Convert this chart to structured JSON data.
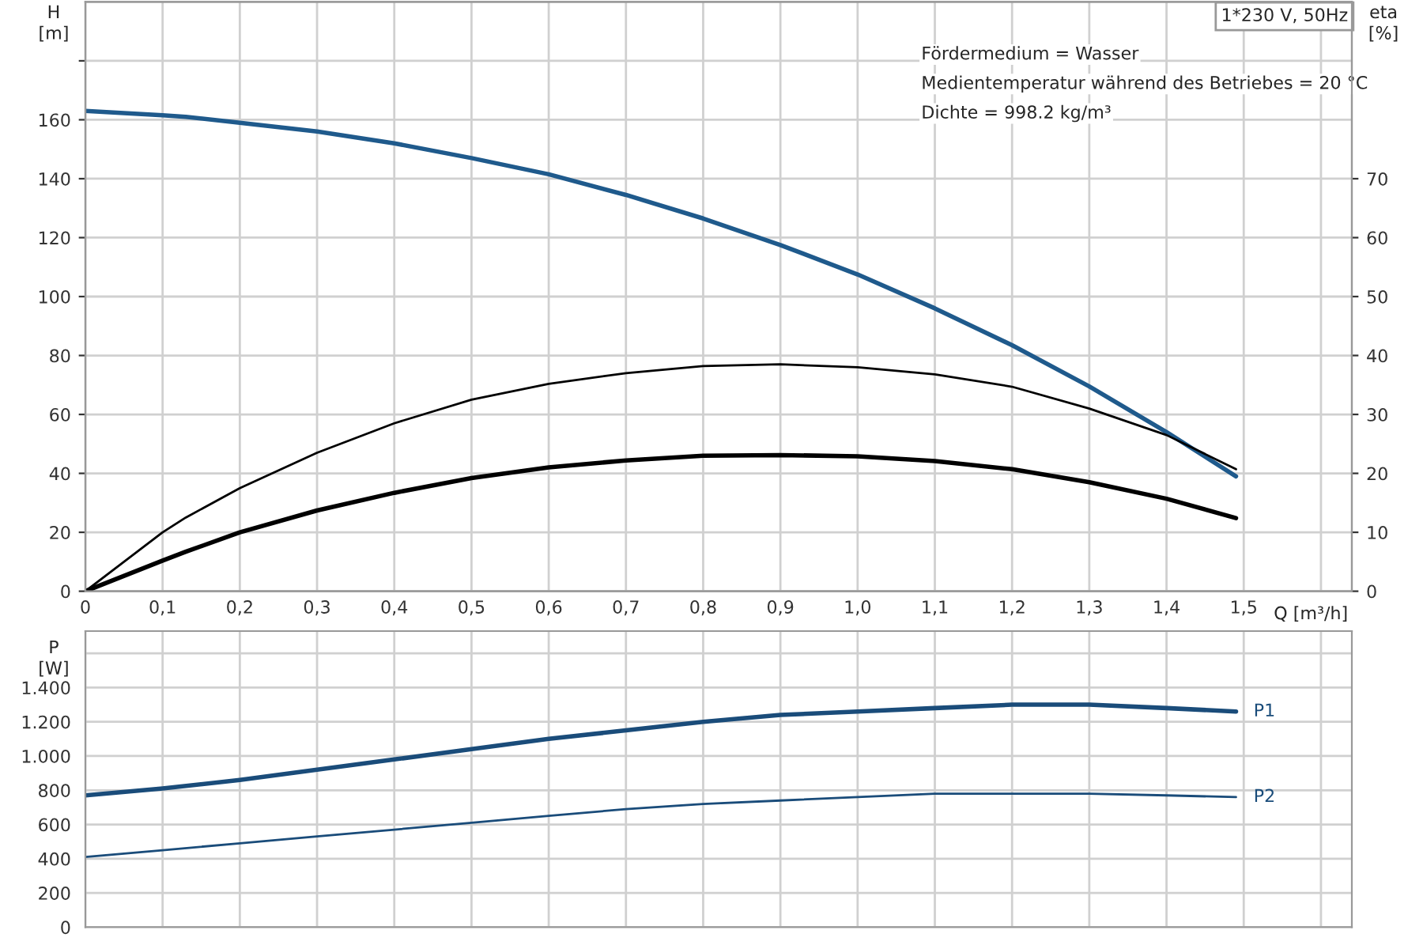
{
  "chart_data": [
    {
      "type": "line",
      "title": "1*230 V, 50Hz",
      "xlabel": "Q [m³/h]",
      "ylabel": "H\n[m]",
      "y2label": "eta\n[%]",
      "annotations": [
        "Fördermedium = Wasser",
        "Medientemperatur während des Betriebes = 20 °C",
        "Dichte = 998.2 kg/m³"
      ],
      "x": [
        0,
        0.1,
        0.13,
        0.2,
        0.3,
        0.4,
        0.5,
        0.6,
        0.7,
        0.8,
        0.9,
        1.0,
        1.1,
        1.2,
        1.3,
        1.4,
        1.49
      ],
      "series": [
        {
          "color": "#1f5a8c",
          "values": [
            163,
            161.5,
            161,
            159,
            156,
            152,
            147,
            141.5,
            134.5,
            126.5,
            117.5,
            107.5,
            96,
            83.5,
            69.5,
            54,
            39
          ]
        },
        {
          "color": "#000000",
          "axis": "y2",
          "values": [
            0,
            10,
            12.5,
            17.5,
            23.5,
            28.5,
            32.5,
            35.2,
            37,
            38.2,
            38.5,
            38,
            36.8,
            34.7,
            31,
            26.5,
            20.7
          ]
        },
        {
          "color": "#000000",
          "axis": "y2",
          "values": [
            0,
            5.2,
            6.7,
            10,
            13.7,
            16.7,
            19.2,
            21,
            22.2,
            23,
            23.1,
            22.9,
            22.1,
            20.7,
            18.5,
            15.7,
            12.4
          ]
        }
      ],
      "xlim": [
        0,
        1.64
      ],
      "ylim": [
        0,
        200
      ],
      "y2lim": [
        0,
        100
      ],
      "xticks": [
        0,
        {
          "value": 0.1,
          "label": "0,1"
        },
        {
          "value": 0.2,
          "label": "0,2"
        },
        {
          "value": 0.3,
          "label": "0,3"
        },
        {
          "value": 0.4,
          "label": "0,4"
        },
        {
          "value": 0.5,
          "label": "0,5"
        },
        {
          "value": 0.6,
          "label": "0,6"
        },
        {
          "value": 0.7,
          "label": "0,7"
        },
        {
          "value": 0.8,
          "label": "0,8"
        },
        {
          "value": 0.9,
          "label": "0,9"
        },
        {
          "value": 1.0,
          "label": "1,0"
        },
        {
          "value": 1.1,
          "label": "1,1"
        },
        {
          "value": 1.2,
          "label": "1,2"
        },
        {
          "value": 1.3,
          "label": "1,3"
        },
        {
          "value": 1.4,
          "label": "1,4"
        },
        {
          "value": 1.5,
          "label": "1,5"
        },
        {
          "value": 1.6,
          "label": null
        }
      ],
      "yticks": [
        0,
        20,
        40,
        60,
        80,
        100,
        120,
        140,
        160,
        {
          "value": 180,
          "label": null
        }
      ],
      "y2ticks": [
        0,
        10,
        20,
        30,
        40,
        50,
        60,
        70
      ],
      "grid": true,
      "marker": "none",
      "line_style": "solid"
    },
    {
      "type": "line",
      "ylabel": "P\n[W]",
      "x": [
        0,
        0.1,
        0.2,
        0.3,
        0.4,
        0.5,
        0.6,
        0.7,
        0.8,
        0.9,
        1.0,
        1.1,
        1.2,
        1.3,
        1.4,
        1.49
      ],
      "series": [
        {
          "name": "P1",
          "color": "#1a4c7a",
          "values": [
            770,
            810,
            860,
            920,
            980,
            1040,
            1100,
            1150,
            1200,
            1240,
            1260,
            1280,
            1300,
            1300,
            1280,
            1260
          ]
        },
        {
          "name": "P2",
          "color": "#1a4c7a",
          "values": [
            410,
            450,
            490,
            530,
            570,
            610,
            650,
            690,
            720,
            740,
            760,
            780,
            780,
            780,
            770,
            760
          ]
        }
      ],
      "xlim": [
        0,
        1.64
      ],
      "ylim": [
        0,
        1730
      ],
      "xticks": [
        0,
        0.1,
        0.2,
        0.3,
        0.4,
        0.5,
        0.6,
        0.7,
        0.8,
        0.9,
        1.0,
        1.1,
        1.2,
        1.3,
        1.4,
        1.5,
        1.6
      ],
      "yticks": [
        0,
        200,
        400,
        600,
        {
          "value": 800,
          "label": "800"
        },
        {
          "value": 1000,
          "label": "1.000"
        },
        {
          "value": 1200,
          "label": "1.200"
        },
        {
          "value": 1400,
          "label": "1.400"
        },
        {
          "value": 1600,
          "label": null
        }
      ],
      "tick_labels": "y",
      "grid": true,
      "marker": "none",
      "line_style": "solid"
    }
  ]
}
